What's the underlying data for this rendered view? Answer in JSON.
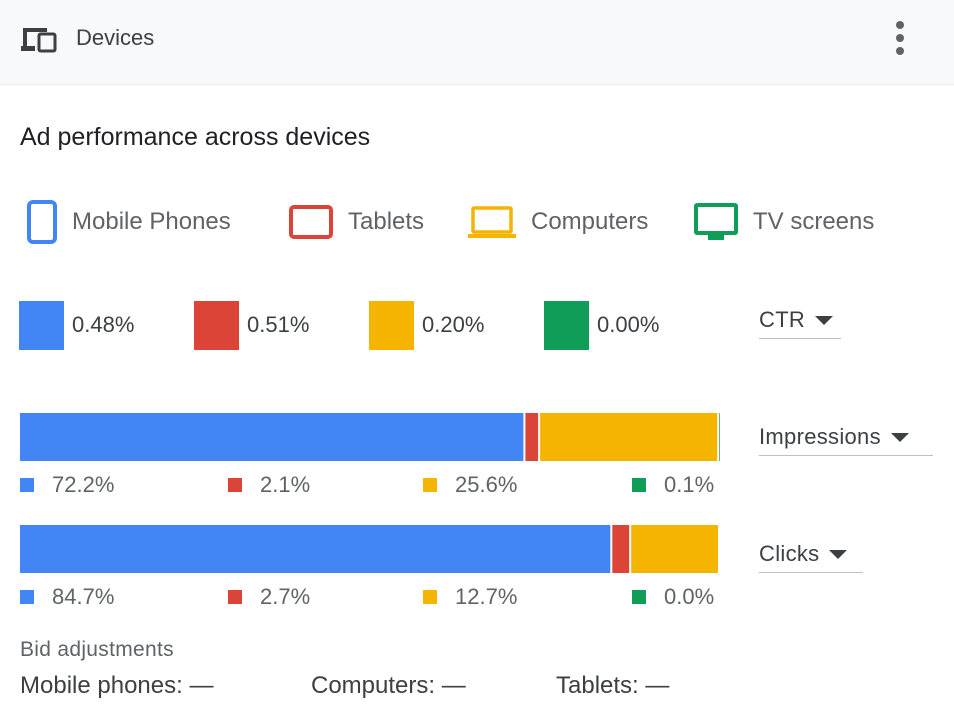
{
  "header": {
    "title": "Devices",
    "icon": "devices-icon",
    "menu_icon": "more-vert-icon"
  },
  "card": {
    "title": "Ad performance across devices"
  },
  "colors": {
    "mobile": "#4285F4",
    "tablets": "#DB4437",
    "computers": "#F4B400",
    "tv": "#0F9D58"
  },
  "legend": [
    {
      "label": "Mobile Phones",
      "icon": "mobile-phone-icon"
    },
    {
      "label": "Tablets",
      "icon": "tablet-icon"
    },
    {
      "label": "Computers",
      "icon": "computer-icon"
    },
    {
      "label": "TV screens",
      "icon": "tv-icon"
    }
  ],
  "metric_values": [
    "0.48%",
    "0.51%",
    "0.20%",
    "0.00%"
  ],
  "dropdowns": {
    "metric": "CTR",
    "bar1": "Impressions",
    "bar2": "Clicks"
  },
  "chart_data": [
    {
      "type": "bar",
      "stacked": true,
      "orientation": "horizontal",
      "metric": "Impressions",
      "categories": [
        "Mobile Phones",
        "Tablets",
        "Computers",
        "TV screens"
      ],
      "values": [
        72.2,
        2.1,
        25.6,
        0.1
      ],
      "labels": [
        "72.2%",
        "2.1%",
        "25.6%",
        "0.1%"
      ],
      "xlim": [
        0,
        100
      ]
    },
    {
      "type": "bar",
      "stacked": true,
      "orientation": "horizontal",
      "metric": "Clicks",
      "categories": [
        "Mobile Phones",
        "Tablets",
        "Computers",
        "TV screens"
      ],
      "values": [
        84.7,
        2.7,
        12.7,
        0.0
      ],
      "labels": [
        "84.7%",
        "2.7%",
        "12.7%",
        "0.0%"
      ],
      "xlim": [
        0,
        100
      ]
    }
  ],
  "bid": {
    "label": "Bid adjustments",
    "items": [
      "Mobile phones: —",
      "Computers: —",
      "Tablets: —"
    ]
  }
}
